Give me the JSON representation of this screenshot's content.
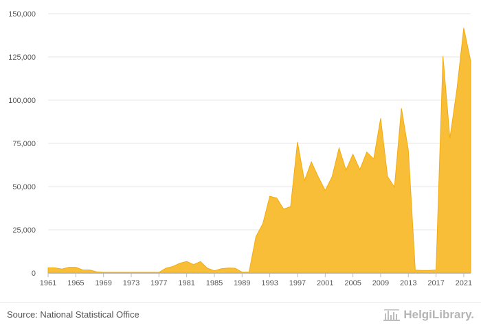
{
  "chart_data": {
    "type": "area",
    "title": "",
    "xlabel": "",
    "ylabel": "",
    "color": "#f9bb2d",
    "grid": true,
    "xlim": [
      1961,
      2022
    ],
    "ylim": [
      0,
      150000
    ],
    "y_ticks": [
      {
        "value": 0,
        "label": "0"
      },
      {
        "value": 25000,
        "label": "25,000"
      },
      {
        "value": 50000,
        "label": "50,000"
      },
      {
        "value": 75000,
        "label": "75,000"
      },
      {
        "value": 100000,
        "label": "100,000"
      },
      {
        "value": 125000,
        "label": "125,000"
      },
      {
        "value": 150000,
        "label": "150,000"
      }
    ],
    "x_ticks": [
      1961,
      1965,
      1969,
      1973,
      1977,
      1981,
      1985,
      1989,
      1993,
      1997,
      2001,
      2005,
      2009,
      2013,
      2017,
      2021
    ],
    "x": [
      1961,
      1962,
      1963,
      1964,
      1965,
      1966,
      1967,
      1968,
      1969,
      1970,
      1971,
      1972,
      1973,
      1974,
      1975,
      1976,
      1977,
      1978,
      1979,
      1980,
      1981,
      1982,
      1983,
      1984,
      1985,
      1986,
      1987,
      1988,
      1989,
      1990,
      1991,
      1992,
      1993,
      1994,
      1995,
      1996,
      1997,
      1998,
      1999,
      2000,
      2001,
      2002,
      2003,
      2004,
      2005,
      2006,
      2007,
      2008,
      2009,
      2010,
      2011,
      2012,
      2013,
      2014,
      2015,
      2016,
      2017,
      2018,
      2019,
      2020,
      2021,
      2022
    ],
    "values": [
      3000,
      3000,
      2300,
      3300,
      3300,
      1800,
      1800,
      700,
      400,
      400,
      400,
      400,
      400,
      400,
      400,
      400,
      400,
      2800,
      3800,
      5600,
      6700,
      4900,
      6600,
      2800,
      1300,
      2500,
      2900,
      2800,
      500,
      500,
      21000,
      28600,
      44400,
      43400,
      37000,
      38400,
      75800,
      53300,
      64300,
      55600,
      47800,
      55800,
      72300,
      59500,
      68700,
      59800,
      70000,
      66000,
      89500,
      55800,
      49700,
      95300,
      71100,
      1700,
      1500,
      1500,
      1800,
      125400,
      78000,
      106000,
      141800,
      122500
    ]
  },
  "footer": {
    "source": "Source: National Statistical Office",
    "brand": "HelgiLibrary."
  }
}
